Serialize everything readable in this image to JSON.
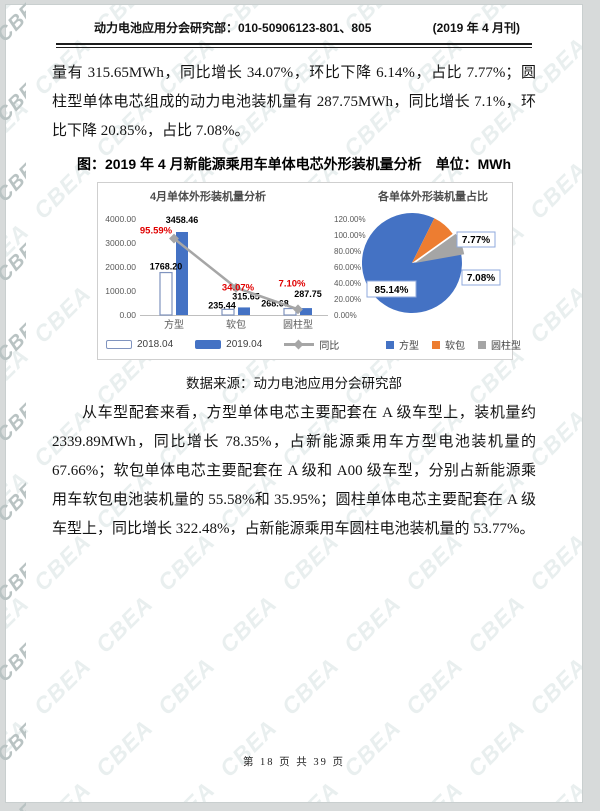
{
  "watermark": "CBEA",
  "header": {
    "left": "动力电池应用分会研究部：010-50906123-801、805",
    "right": "(2019 年 4 月刊)"
  },
  "paragraphs": {
    "p1": "量有 315.65MWh，同比增长 34.07%，环比下降 6.14%，占比 7.77%；圆柱型单体电芯组成的动力电池装机量有 287.75MWh，同比增长 7.1%，环比下降 20.85%，占比 7.08%。",
    "p2": "从车型配套来看，方型单体电芯主要配套在 A 级车型上，装机量约 2339.89MWh，同比增长 78.35%，占新能源乘用车方型电池装机量的 67.66%；软包单体电芯主要配套在 A 级和 A00 级车型，分别占新能源乘用车软包电池装机量的 55.58%和 35.95%；圆柱单体电芯主要配套在 A 级车型上，同比增长 322.48%，占新能源乘用车圆柱电池装机量的 53.77%。"
  },
  "figure": {
    "title": "图：2019 年 4 月新能源乘用车单体电芯外形装机量分析　单位：MWh",
    "source": "数据来源：动力电池应用分会研究部"
  },
  "footer": {
    "text": "第 18 页 共 39 页"
  },
  "chart_data": [
    {
      "type": "bar",
      "title": "4月单体外形装机量分析",
      "categories": [
        "方型",
        "软包",
        "圆柱型"
      ],
      "series": [
        {
          "name": "2018.04",
          "type": "bar",
          "style": "outline",
          "values": [
            1768.2,
            235.44,
            268.68
          ]
        },
        {
          "name": "2019.04",
          "type": "bar",
          "style": "solid",
          "values": [
            3458.46,
            315.65,
            287.75
          ]
        },
        {
          "name": "同比",
          "type": "line",
          "axis": "secondary",
          "values": [
            95.59,
            34.07,
            7.1
          ],
          "labels": [
            "95.59%",
            "34.07%",
            "7.10%"
          ]
        }
      ],
      "y_axis": {
        "min": 0,
        "max": 4000,
        "step": 1000,
        "tick_labels": [
          "0.00",
          "1000.00",
          "2000.00",
          "3000.00",
          "4000.00"
        ]
      },
      "y2_axis": {
        "min": 0,
        "max": 120,
        "step": 20,
        "tick_labels": [
          "0.00%",
          "20.00%",
          "40.00%",
          "60.00%",
          "80.00%",
          "100.00%",
          "120.00%"
        ]
      },
      "grid": false,
      "legend_position": "bottom",
      "colors": {
        "bar_2018_outline": "#8094bf",
        "bar_2019": "#4472c4",
        "line": "#a6a6a6",
        "yoy_label": "#e00000",
        "axis_text": "#595959"
      }
    },
    {
      "type": "pie",
      "title": "各单体外形装机量占比",
      "labels": [
        "方型",
        "软包",
        "圆柱型"
      ],
      "values": [
        85.14,
        7.77,
        7.08
      ],
      "value_labels": [
        "85.14%",
        "7.77%",
        "7.08%"
      ],
      "colors": [
        "#4472c4",
        "#ed7d31",
        "#a5a5a5"
      ],
      "callout_border": "#8faadc",
      "start_angle_deg": 80,
      "legend_position": "bottom"
    }
  ]
}
